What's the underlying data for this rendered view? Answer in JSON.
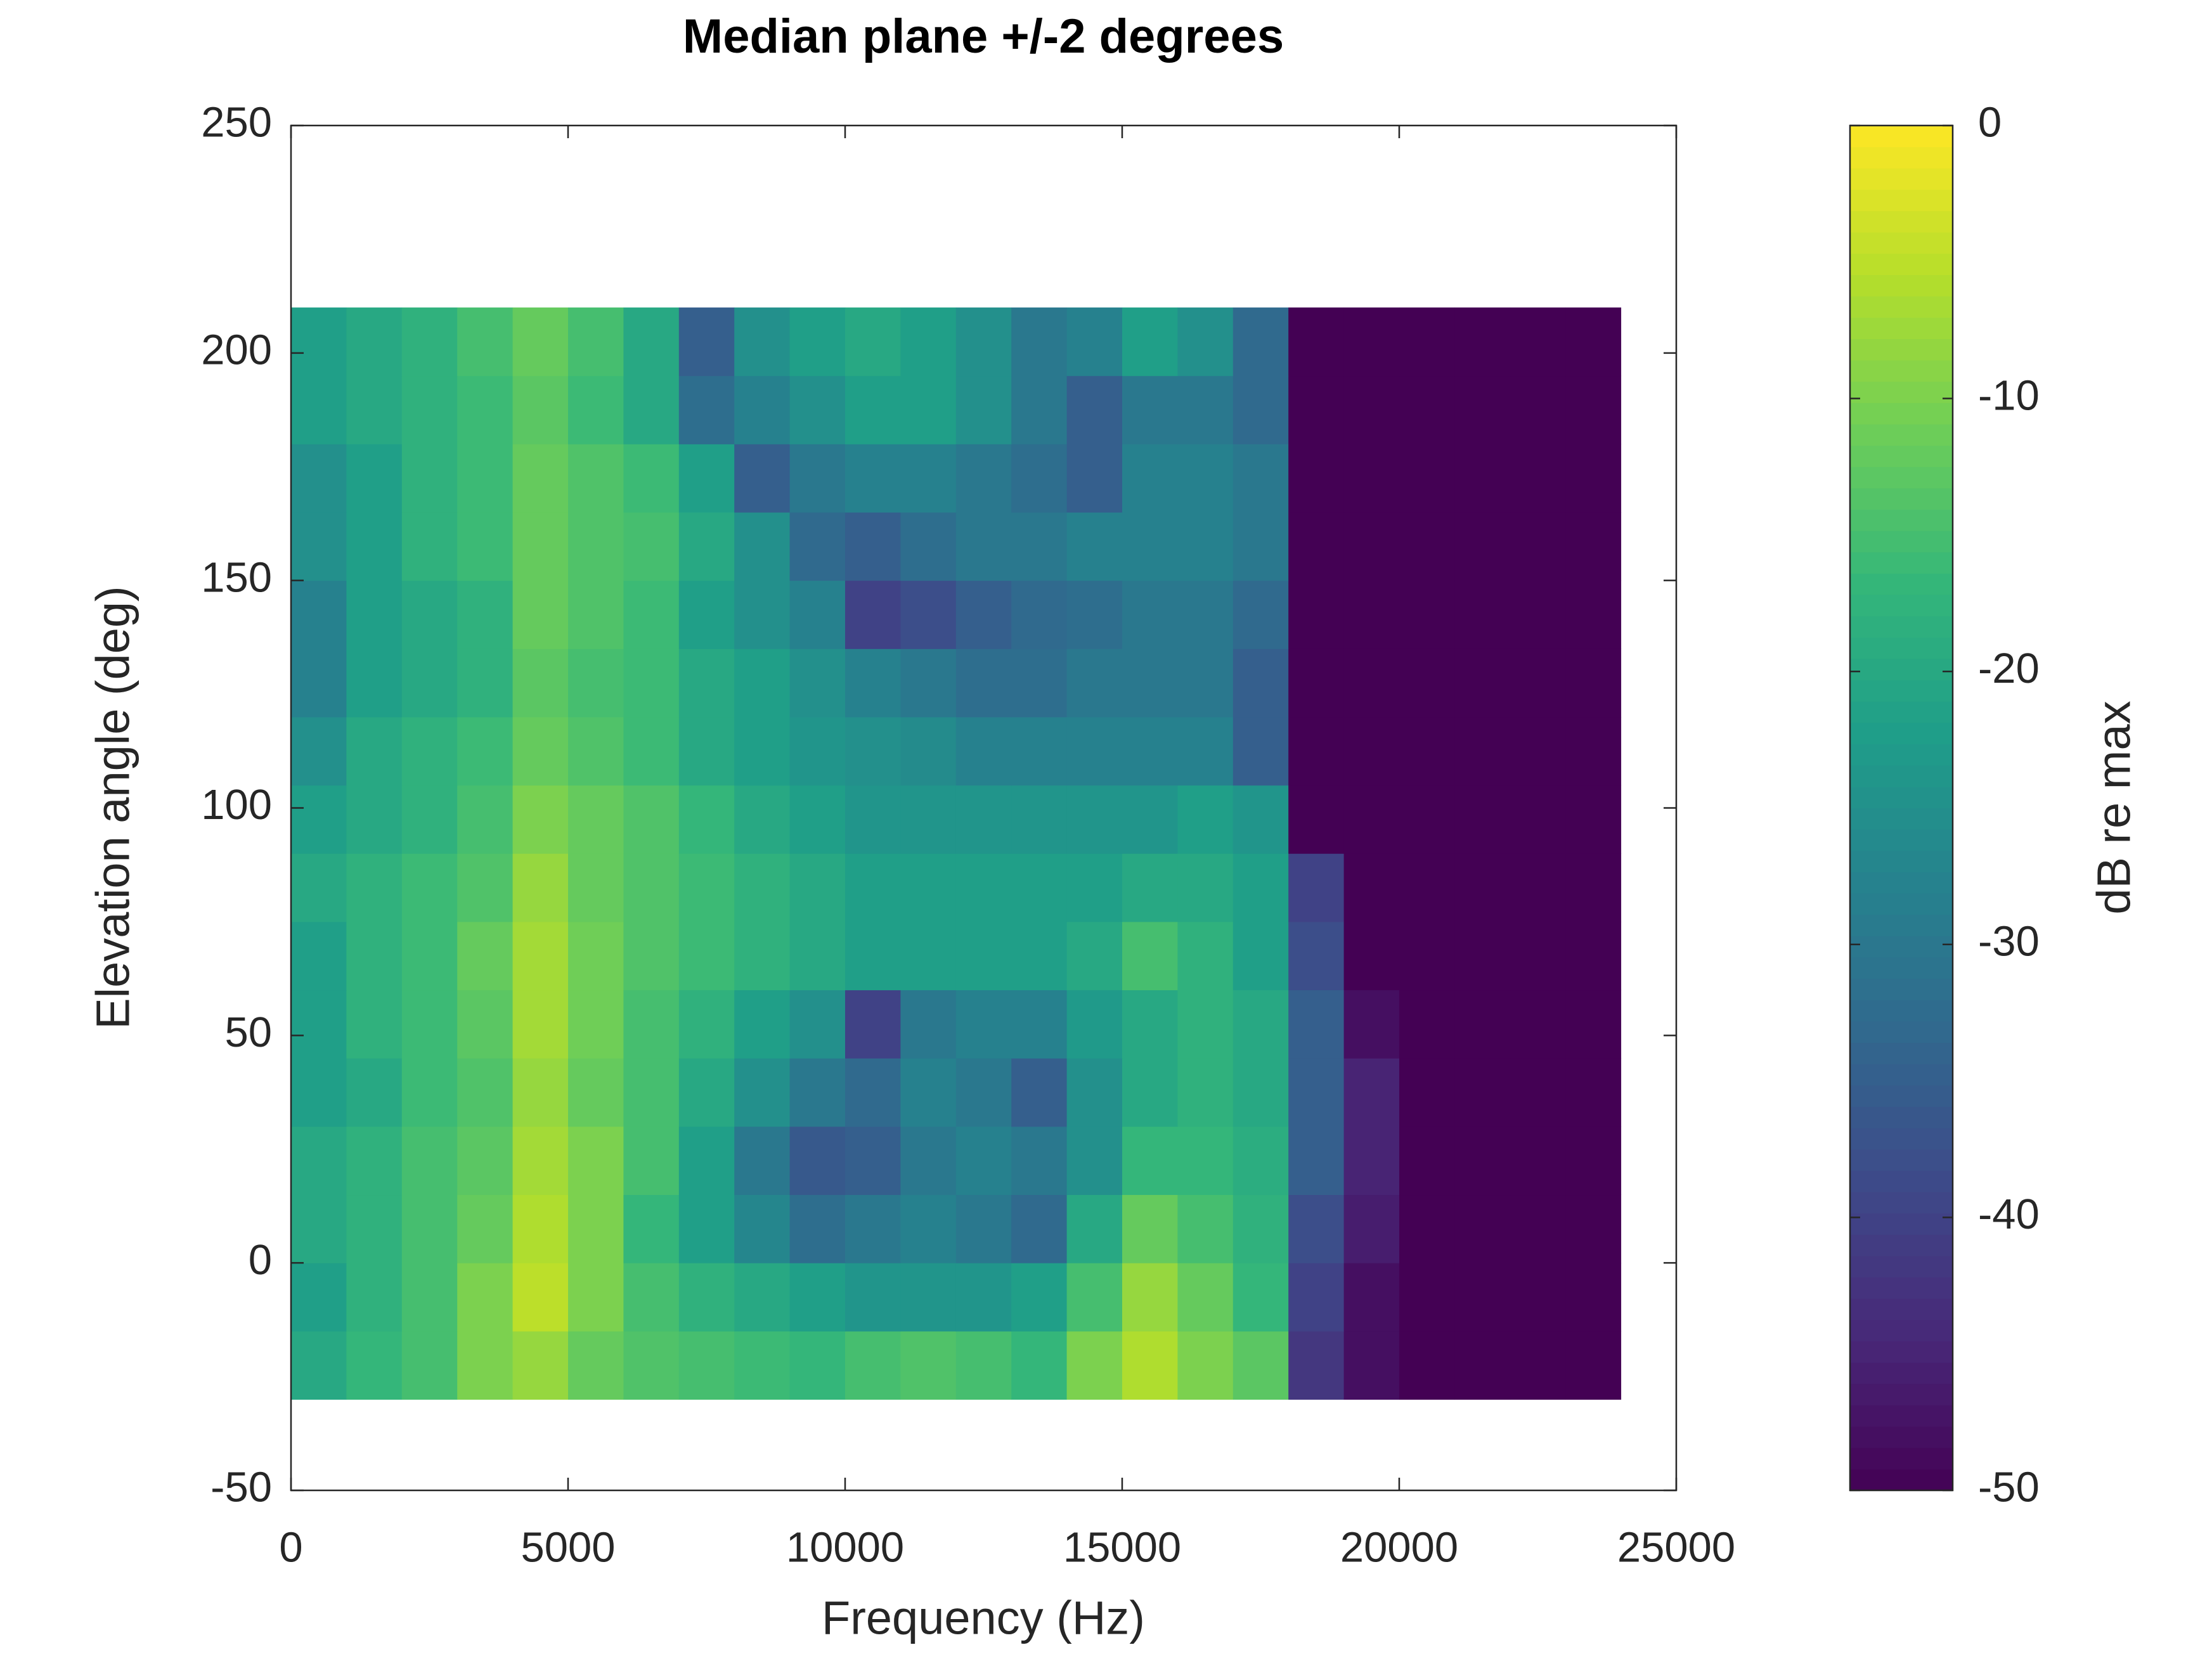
{
  "chart_data": {
    "type": "heatmap",
    "title": "Median plane +/-2 degrees",
    "xlabel": "Frequency (Hz)",
    "ylabel": "Elevation angle (deg)",
    "colorbar_label": "dB re max",
    "colormap": "viridis",
    "x": [
      500,
      1500,
      2500,
      3500,
      4500,
      5500,
      6500,
      7500,
      8500,
      9500,
      10500,
      11500,
      12500,
      13500,
      14500,
      15500,
      16500,
      17500,
      18500,
      19500,
      20500,
      21500,
      22500,
      23500
    ],
    "y": [
      -22.5,
      -7.5,
      7.5,
      22.5,
      37.5,
      52.5,
      67.5,
      82.5,
      97.5,
      112.5,
      127.5,
      142.5,
      157.5,
      172.5,
      187.5,
      202.5
    ],
    "z": [
      [
        -20,
        -17,
        -15,
        -10,
        -8,
        -12,
        -14,
        -15,
        -16,
        -17,
        -15,
        -14,
        -15,
        -17,
        -10,
        -6,
        -10,
        -13,
        -42,
        -48,
        -50,
        -50,
        -50,
        -50
      ],
      [
        -22,
        -18,
        -15,
        -10,
        -5,
        -10,
        -15,
        -18,
        -20,
        -22,
        -24,
        -24,
        -24,
        -22,
        -15,
        -8,
        -12,
        -17,
        -40,
        -48,
        -50,
        -50,
        -50,
        -50
      ],
      [
        -20,
        -18,
        -15,
        -12,
        -6,
        -10,
        -17,
        -22,
        -27,
        -32,
        -30,
        -28,
        -30,
        -33,
        -20,
        -12,
        -15,
        -18,
        -38,
        -46,
        -50,
        -50,
        -50,
        -50
      ],
      [
        -20,
        -18,
        -15,
        -13,
        -7,
        -10,
        -15,
        -22,
        -30,
        -36,
        -35,
        -30,
        -28,
        -30,
        -25,
        -17,
        -17,
        -19,
        -35,
        -45,
        -50,
        -50,
        -50,
        -50
      ],
      [
        -22,
        -20,
        -16,
        -14,
        -8,
        -12,
        -15,
        -20,
        -25,
        -30,
        -33,
        -28,
        -30,
        -35,
        -25,
        -20,
        -18,
        -20,
        -35,
        -45,
        -50,
        -50,
        -50,
        -50
      ],
      [
        -22,
        -18,
        -16,
        -13,
        -7,
        -11,
        -15,
        -18,
        -22,
        -25,
        -40,
        -30,
        -28,
        -28,
        -23,
        -20,
        -18,
        -20,
        -35,
        -48,
        -50,
        -50,
        -50,
        -50
      ],
      [
        -22,
        -18,
        -16,
        -12,
        -7,
        -11,
        -14,
        -16,
        -18,
        -20,
        -22,
        -22,
        -22,
        -22,
        -20,
        -15,
        -18,
        -22,
        -38,
        -50,
        -50,
        -50,
        -50,
        -50
      ],
      [
        -20,
        -18,
        -16,
        -14,
        -8,
        -12,
        -14,
        -16,
        -18,
        -20,
        -22,
        -22,
        -22,
        -22,
        -22,
        -20,
        -20,
        -22,
        -40,
        -50,
        -50,
        -50,
        -50,
        -50
      ],
      [
        -22,
        -20,
        -18,
        -15,
        -10,
        -12,
        -14,
        -17,
        -20,
        -22,
        -24,
        -24,
        -24,
        -24,
        -24,
        -24,
        -22,
        -24,
        -50,
        -50,
        -50,
        -50,
        -50,
        -50
      ],
      [
        -25,
        -20,
        -18,
        -16,
        -12,
        -14,
        -16,
        -20,
        -22,
        -24,
        -25,
        -26,
        -28,
        -28,
        -28,
        -28,
        -28,
        -35,
        -50,
        -50,
        -50,
        -50,
        -50,
        -50
      ],
      [
        -28,
        -22,
        -20,
        -18,
        -13,
        -15,
        -16,
        -20,
        -22,
        -25,
        -28,
        -30,
        -32,
        -32,
        -30,
        -30,
        -30,
        -35,
        -50,
        -50,
        -50,
        -50,
        -50,
        -50
      ],
      [
        -28,
        -22,
        -20,
        -18,
        -12,
        -14,
        -16,
        -22,
        -25,
        -28,
        -40,
        -38,
        -35,
        -33,
        -32,
        -30,
        -30,
        -33,
        -50,
        -50,
        -50,
        -50,
        -50,
        -50
      ],
      [
        -25,
        -22,
        -18,
        -16,
        -12,
        -14,
        -15,
        -20,
        -25,
        -33,
        -35,
        -32,
        -30,
        -30,
        -28,
        -28,
        -28,
        -30,
        -50,
        -50,
        -50,
        -50,
        -50,
        -50
      ],
      [
        -25,
        -22,
        -18,
        -16,
        -12,
        -14,
        -16,
        -22,
        -35,
        -30,
        -28,
        -28,
        -30,
        -32,
        -35,
        -28,
        -28,
        -30,
        -50,
        -50,
        -50,
        -50,
        -50,
        -50
      ],
      [
        -22,
        -20,
        -18,
        -16,
        -13,
        -16,
        -20,
        -32,
        -28,
        -25,
        -22,
        -22,
        -25,
        -30,
        -35,
        -30,
        -30,
        -33,
        -50,
        -50,
        -50,
        -50,
        -50,
        -50
      ],
      [
        -22,
        -20,
        -18,
        -15,
        -12,
        -15,
        -20,
        -35,
        -25,
        -22,
        -20,
        -22,
        -25,
        -30,
        -28,
        -22,
        -25,
        -33,
        -50,
        -50,
        -50,
        -50,
        -50,
        -50
      ]
    ],
    "xlim": [
      0,
      25000
    ],
    "xticks": [
      0,
      5000,
      10000,
      15000,
      20000,
      25000
    ],
    "ylim": [
      -50,
      250
    ],
    "yticks": [
      -50,
      0,
      50,
      100,
      150,
      200,
      250
    ],
    "clim": [
      -50,
      0
    ],
    "cticks": [
      -50,
      -40,
      -30,
      -20,
      -10,
      0
    ]
  }
}
